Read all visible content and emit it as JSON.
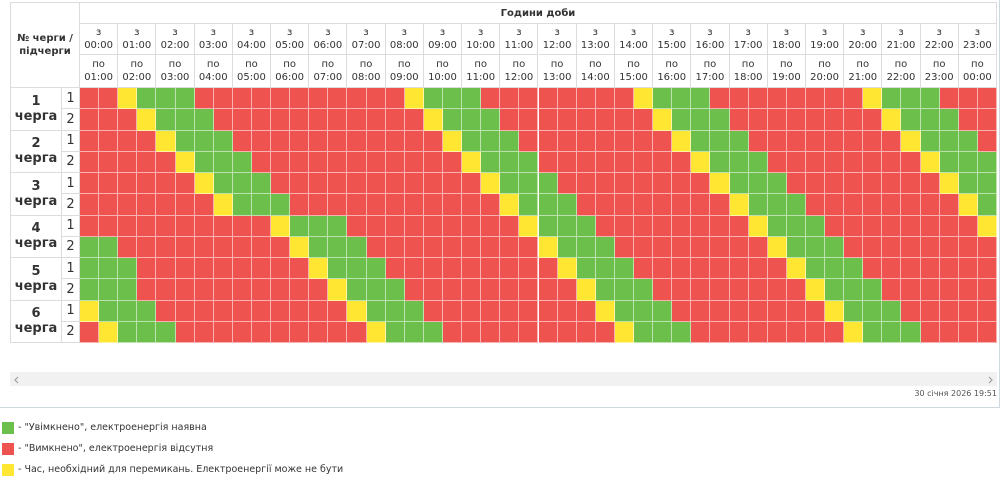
{
  "table": {
    "corner": "№ черги / підчерги",
    "title": "Години доби",
    "from_prefix": "з",
    "to_prefix": "по",
    "hours_from": [
      "00:00",
      "01:00",
      "02:00",
      "03:00",
      "04:00",
      "05:00",
      "06:00",
      "07:00",
      "08:00",
      "09:00",
      "10:00",
      "11:00",
      "12:00",
      "13:00",
      "14:00",
      "15:00",
      "16:00",
      "17:00",
      "18:00",
      "19:00",
      "20:00",
      "21:00",
      "22:00",
      "23:00"
    ],
    "hours_to": [
      "01:00",
      "02:00",
      "03:00",
      "04:00",
      "05:00",
      "06:00",
      "07:00",
      "08:00",
      "09:00",
      "10:00",
      "11:00",
      "12:00",
      "13:00",
      "14:00",
      "15:00",
      "16:00",
      "17:00",
      "18:00",
      "19:00",
      "20:00",
      "21:00",
      "22:00",
      "23:00",
      "00:00"
    ],
    "queues": [
      {
        "number": "1",
        "word": "черга",
        "subrows": [
          {
            "sub": "1",
            "cells": "RRYGGGRRRRRRRRRRRYGGGRRRRRRRRYGGGRRRRRRRRYGGGRRR"
          },
          {
            "sub": "2",
            "cells": "RRRYGGGRRRRRRRRRRRYGGGRRRRRRRRYGGGRRRRRRRRYGGGRR"
          }
        ]
      },
      {
        "number": "2",
        "word": "черга",
        "subrows": [
          {
            "sub": "1",
            "cells": "RRRRYGGGRRRRRRRRRRRYGGGRRRRRRRRYGGGRRRRRRRRYGGGR"
          },
          {
            "sub": "2",
            "cells": "RRRRRYGGGRRRRRRRRRRRYGGGRRRRRRRRYGGGRRRRRRRRYGGG"
          }
        ]
      },
      {
        "number": "3",
        "word": "черга",
        "subrows": [
          {
            "sub": "1",
            "cells": "RRRRRRYGGGRRRRRRRRRRRYGGGRRRRRRRRYGGGRRRRRRRRYGG"
          },
          {
            "sub": "2",
            "cells": "RRRRRRRYGGGRRRRRRRRRRRYGGGRRRRRRRRYGGGRRRRRRRRYG"
          }
        ]
      },
      {
        "number": "4",
        "word": "черга",
        "subrows": [
          {
            "sub": "1",
            "cells": "RRRRRRRRRRYGGGRRRRRRRRRYGGGRRRRRRRRYGGGRRRRRRRRY"
          },
          {
            "sub": "2",
            "cells": "GGRRRRRRRRRYGGGRRRRRRRRRYGGGRRRRRRRRYGGGRRRRRRRR"
          }
        ]
      },
      {
        "number": "5",
        "word": "черга",
        "subrows": [
          {
            "sub": "1",
            "cells": "GGGRRRRRRRRRYGGGRRRRRRRRRYGGGRRRRRRRRYGGGRRRRRRR"
          },
          {
            "sub": "2",
            "cells": "GGGRRRRRRRRRRYGGGRRRRRRRRRYGGGRRRRRRRRYGGGRRRRRR"
          }
        ]
      },
      {
        "number": "6",
        "word": "черга",
        "subrows": [
          {
            "sub": "1",
            "cells": "YGGGRRRRRRRRRRYGGGRRRRRRRRRYGGGRRRRRRRRYGGGRRRRR"
          },
          {
            "sub": "2",
            "cells": "RYGGGRRRRRRRRRRYGGGRRRRRRRRRYGGGRRRRRRRRYGGGRRRR"
          }
        ]
      }
    ]
  },
  "timestamp": "30 січня 2026 19:51",
  "legend": [
    {
      "code": "G",
      "color": "#6cbf4b",
      "text": "- \"Увімкнено\", електроенергія наявна"
    },
    {
      "code": "R",
      "color": "#ef5350",
      "text": "- \"Вимкнено\", електроенергія відсутня"
    },
    {
      "code": "Y",
      "color": "#ffe633",
      "text": "- Час, необхідний для перемикань. Електроенергії може не бути"
    }
  ]
}
